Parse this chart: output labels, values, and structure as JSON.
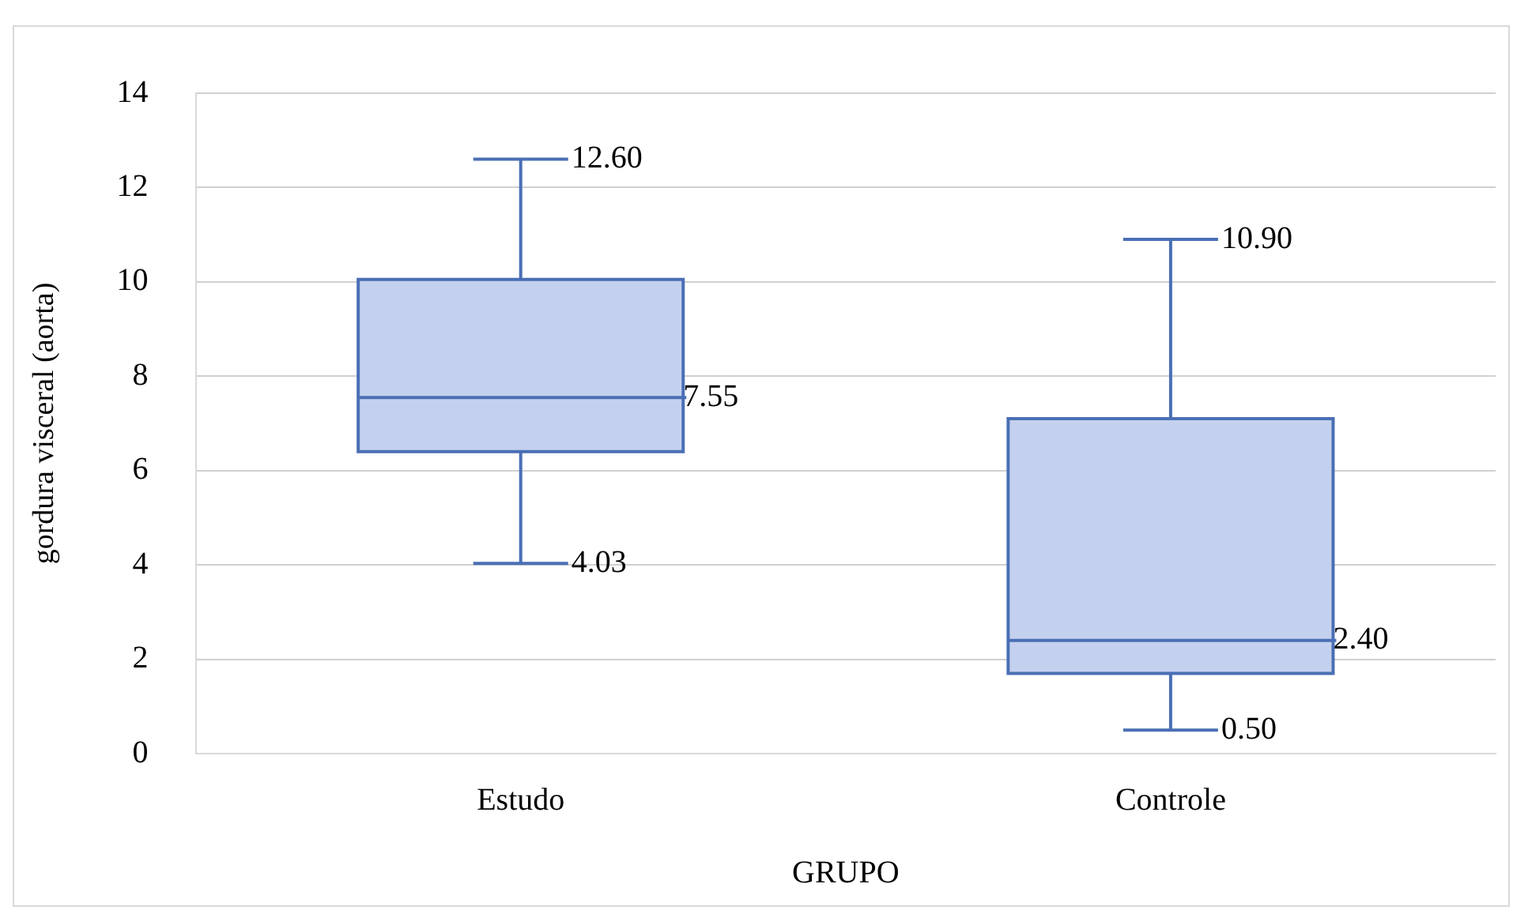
{
  "chart_data": {
    "type": "box",
    "xlabel": "GRUPO",
    "ylabel": "gordura visceral (aorta)",
    "categories": [
      "Estudo",
      "Controle"
    ],
    "boxes": [
      {
        "low": 4.03,
        "q1": 6.4,
        "median": 7.55,
        "q3": 10.05,
        "high": 12.6
      },
      {
        "low": 0.5,
        "q1": 1.7,
        "median": 2.4,
        "q3": 7.1,
        "high": 10.9
      }
    ],
    "color": "#4a6fb5",
    "ylim": [
      0,
      14
    ],
    "yticks": [
      0,
      2,
      4,
      6,
      8,
      10,
      12,
      14
    ],
    "grid": "y",
    "legend": false,
    "annotations": [
      {
        "text": "12.60",
        "x": "Estudo",
        "y": 12.6
      },
      "7.55",
      {
        "text": "4.03",
        "x": "Estudo",
        "y": 4.03
      },
      {
        "text": "10.90",
        "x": "Controle",
        "y": 10.9
      },
      "2.40",
      {
        "text": "0.50",
        "x": "Controle",
        "y": 0.5
      }
    ]
  }
}
